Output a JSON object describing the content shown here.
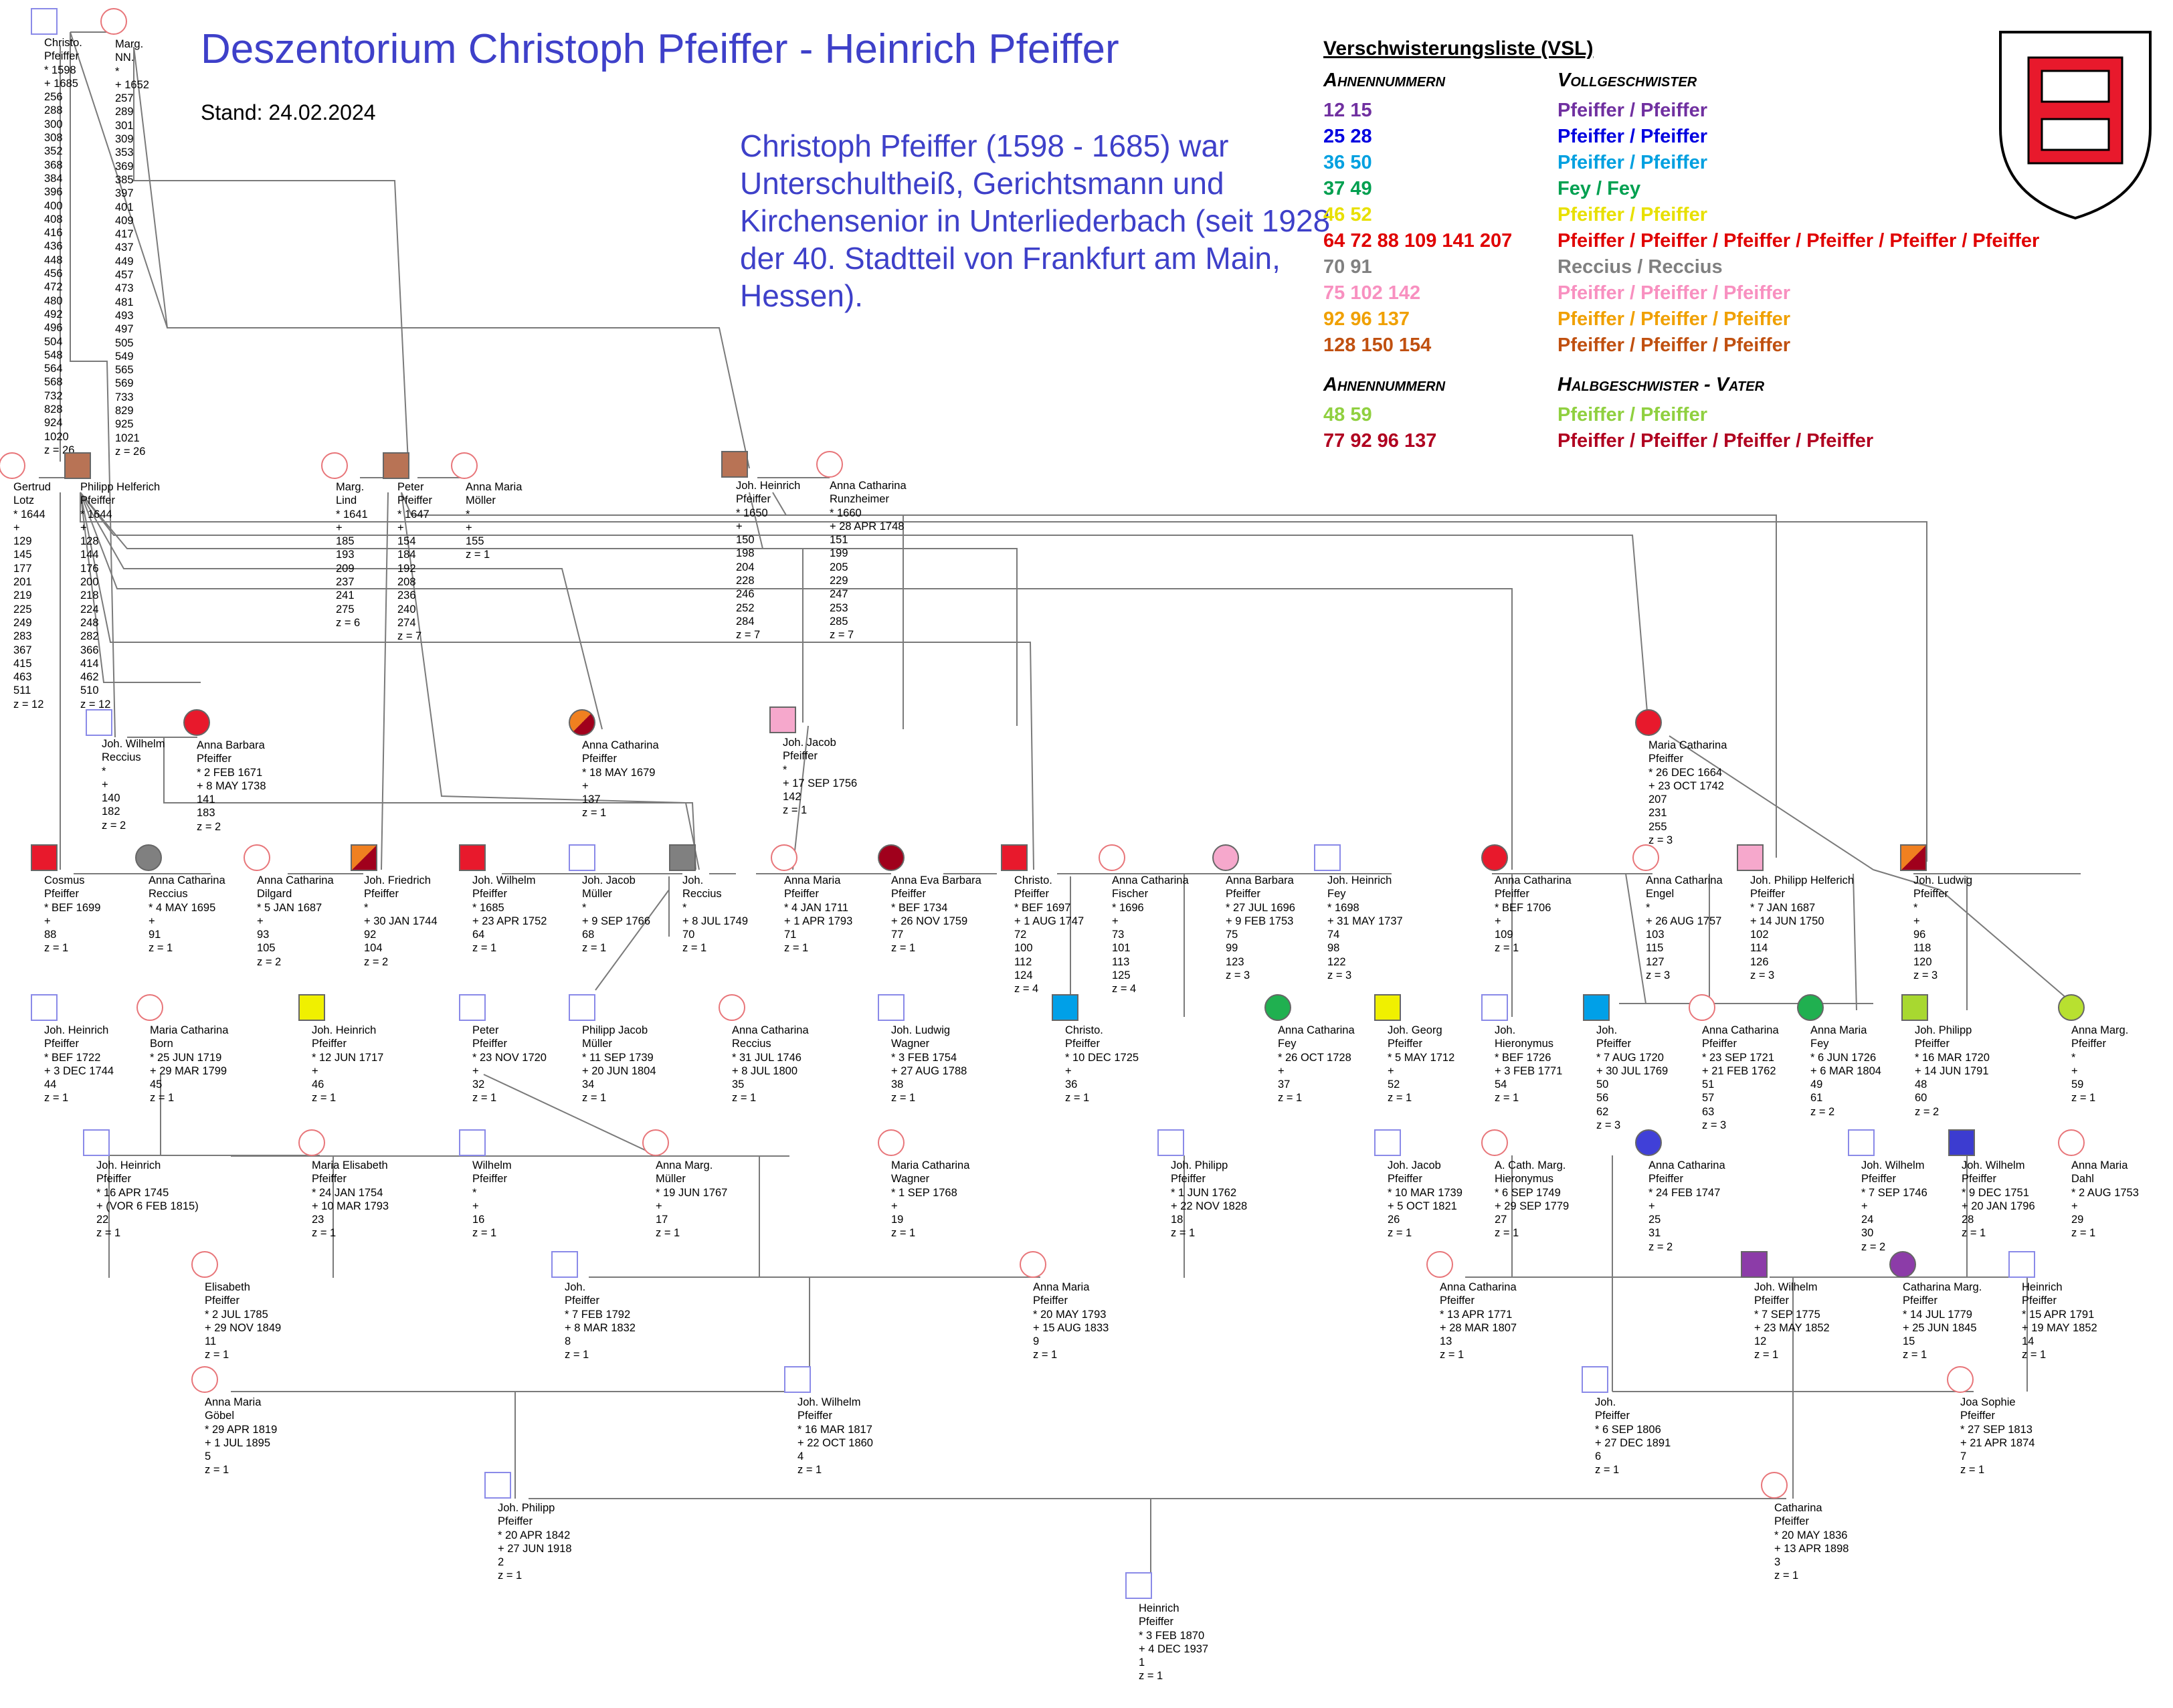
{
  "header": {
    "title": "Deszentorium Christoph Pfeiffer - Heinrich Pfeiffer",
    "stand": "Stand: 24.02.2024",
    "description": "Christoph Pfeiffer (1598 - 1685) war Unterschultheiß, Gerichtsmann und Kirchensenior in Unterliederbach (seit 1928 der 40. Stadtteil von Frankfurt am Main, Hessen)."
  },
  "legend": {
    "title": "Verschwisterungsliste (VSL)",
    "col1": "Ahnennummern",
    "col2": "Vollgeschwister",
    "rows": [
      {
        "k": "12 15",
        "v": "Pfeiffer / Pfeiffer",
        "color": "#7030a0"
      },
      {
        "k": "25 28",
        "v": "Pfeiffer / Pfeiffer",
        "color": "#0000e0"
      },
      {
        "k": "36 50",
        "v": "Pfeiffer / Pfeiffer",
        "color": "#00a0e0"
      },
      {
        "k": "37 49",
        "v": "Fey / Fey",
        "color": "#00a050"
      },
      {
        "k": "46 52",
        "v": "Pfeiffer / Pfeiffer",
        "color": "#e8e000"
      },
      {
        "k": "64 72 88 109 141 207",
        "v": "Pfeiffer / Pfeiffer / Pfeiffer / Pfeiffer / Pfeiffer / Pfeiffer",
        "color": "#e00000"
      },
      {
        "k": "70 91",
        "v": "Reccius / Reccius",
        "color": "#808080"
      },
      {
        "k": "75 102 142",
        "v": "Pfeiffer / Pfeiffer / Pfeiffer",
        "color": "#f890c0"
      },
      {
        "k": "92 96 137",
        "v": "Pfeiffer / Pfeiffer / Pfeiffer",
        "color": "#f0a000"
      },
      {
        "k": "128 150 154",
        "v": "Pfeiffer / Pfeiffer / Pfeiffer",
        "color": "#c05010"
      }
    ],
    "col1b": "Ahnennummern",
    "col2b": "Halbgeschwister - Vater",
    "rows2": [
      {
        "k": "48 59",
        "v": "Pfeiffer / Pfeiffer",
        "color": "#90d040"
      },
      {
        "k": "77 92 96 137",
        "v": "Pfeiffer / Pfeiffer / Pfeiffer / Pfeiffer",
        "color": "#b00020"
      }
    ]
  },
  "persons": [
    {
      "id": "p1",
      "shape": "sq",
      "fill": "empty",
      "text": "Christo.\nPfeiffer\n* 1598\n+ 1685\n256\n288\n300\n308\n352\n368\n384\n396\n400\n408\n416\n436\n448\n456\n472\n480\n492\n496\n504\n548\n564\n568\n732\n828\n924\n1020\nz = 26"
    },
    {
      "id": "p2",
      "shape": "ci",
      "fill": "empty",
      "text": "Marg.\nNN.\n*\n+ 1652\n257\n289\n301\n309\n353\n369\n385\n397\n401\n409\n417\n437\n449\n457\n473\n481\n493\n497\n505\n549\n565\n569\n733\n829\n925\n1021\nz = 26"
    },
    {
      "id": "p3",
      "shape": "ci",
      "fill": "empty",
      "text": "Gertrud\nLotz\n* 1644\n+\n129\n145\n177\n201\n219\n225\n249\n283\n367\n415\n463\n511\nz = 12"
    },
    {
      "id": "p4",
      "shape": "sq",
      "fill": "#b87355",
      "text": "Philipp Helferich\nPfeiffer\n* 1644\n+\n128\n144\n176\n200\n218\n224\n248\n282\n366\n414\n462\n510\nz = 12"
    },
    {
      "id": "p5",
      "shape": "ci",
      "fill": "empty",
      "text": "Marg.\nLind\n* 1641\n+\n185\n193\n209\n237\n241\n275\nz = 6"
    },
    {
      "id": "p6",
      "shape": "sq",
      "fill": "#b87355",
      "text": "Peter\nPfeiffer\n* 1647\n+\n154\n184\n192\n208\n236\n240\n274\nz = 7"
    },
    {
      "id": "p7",
      "shape": "ci",
      "fill": "empty",
      "text": "Anna Maria\nMöller\n*\n+\n155\nz = 1"
    },
    {
      "id": "p8",
      "shape": "sq",
      "fill": "#b87355",
      "text": "Joh. Heinrich\nPfeiffer\n* 1650\n+\n150\n198\n204\n228\n246\n252\n284\nz = 7"
    },
    {
      "id": "p9",
      "shape": "ci",
      "fill": "empty",
      "text": "Anna Catharina\nRunzheimer\n* 1660\n+ 28 APR 1748\n151\n199\n205\n229\n247\n253\n285\nz = 7"
    },
    {
      "id": "p10",
      "shape": "sq",
      "fill": "empty",
      "text": "Joh. Wilhelm\nReccius\n*\n+\n140\n182\nz = 2"
    },
    {
      "id": "p11",
      "shape": "ci",
      "fill": "#e8192c",
      "text": "Anna Barbara\nPfeiffer\n* 2 FEB 1671\n+ 8 MAY 1738\n141\n183\nz = 2"
    },
    {
      "id": "p12",
      "shape": "ci",
      "fill": "split:#f08020:#a0001c",
      "text": "Anna Catharina\nPfeiffer\n* 18 MAY 1679\n+\n137\nz = 1"
    },
    {
      "id": "p13",
      "shape": "sq",
      "fill": "#f6a8cc",
      "text": "Joh. Jacob\nPfeiffer\n*\n+ 17 SEP 1756\n142\nz = 1"
    },
    {
      "id": "p14",
      "shape": "ci",
      "fill": "#e8192c",
      "text": "Maria Catharina\nPfeiffer\n* 26 DEC 1664\n+ 23 OCT 1742\n207\n231\n255\nz = 3"
    },
    {
      "id": "p15",
      "shape": "sq",
      "fill": "#e8192c",
      "text": "Cosmus\nPfeiffer\n* BEF 1699\n+\n88\nz = 1"
    },
    {
      "id": "p16",
      "shape": "ci",
      "fill": "#808080",
      "text": "Anna Catharina\nReccius\n* 4 MAY 1695\n+\n91\nz = 1"
    },
    {
      "id": "p17",
      "shape": "ci",
      "fill": "empty",
      "text": "Anna Catharina\nDilgard\n* 5 JAN 1687\n+\n93\n105\nz = 2"
    },
    {
      "id": "p18",
      "shape": "sq",
      "fill": "split:#f08020:#a0001c",
      "text": "Joh. Friedrich\nPfeiffer\n*\n+ 30 JAN 1744\n92\n104\nz = 2"
    },
    {
      "id": "p19",
      "shape": "sq",
      "fill": "#e8192c",
      "text": "Joh. Wilhelm\nPfeiffer\n* 1685\n+ 23 APR 1752\n64\nz = 1"
    },
    {
      "id": "p20",
      "shape": "sq",
      "fill": "empty",
      "text": "Joh. Jacob\nMüller\n*\n+ 9 SEP 1766\n68\nz = 1"
    },
    {
      "id": "p21",
      "shape": "sq",
      "fill": "#808080",
      "text": "Joh.\nReccius\n*\n+ 8 JUL 1749\n70\nz = 1"
    },
    {
      "id": "p22",
      "shape": "ci",
      "fill": "empty",
      "text": "Anna Maria\nPfeiffer\n* 4 JAN 1711\n+ 1 APR 1793\n71\nz = 1"
    },
    {
      "id": "p23",
      "shape": "ci",
      "fill": "#a0001c",
      "text": "Anna Eva Barbara\nPfeiffer\n* BEF 1734\n+ 26 NOV 1759\n77\nz = 1"
    },
    {
      "id": "p24",
      "shape": "sq",
      "fill": "#e8192c",
      "text": "Christo.\nPfeiffer\n* BEF 1697\n+ 1 AUG 1747\n72\n100\n112\n124\nz = 4"
    },
    {
      "id": "p25",
      "shape": "ci",
      "fill": "empty",
      "text": "Anna Catharina\nFischer\n* 1696\n+\n73\n101\n113\n125\nz = 4"
    },
    {
      "id": "p26",
      "shape": "ci",
      "fill": "#f6a8cc",
      "text": "Anna Barbara\nPfeiffer\n* 27 JUL 1696\n+ 9 FEB 1753\n75\n99\n123\nz = 3"
    },
    {
      "id": "p27",
      "shape": "sq",
      "fill": "empty",
      "text": "Joh. Heinrich\nFey\n* 1698\n+ 31 MAY 1737\n74\n98\n122\nz = 3"
    },
    {
      "id": "p28",
      "shape": "ci",
      "fill": "#e8192c",
      "text": "Anna Catharina\nPfeiffer\n* BEF 1706\n+\n109\nz = 1"
    },
    {
      "id": "p29",
      "shape": "ci",
      "fill": "empty",
      "text": "Anna Catharina\nEngel\n*\n+ 26 AUG 1757\n103\n115\n127\nz = 3"
    },
    {
      "id": "p30",
      "shape": "sq",
      "fill": "#f6a8cc",
      "text": "Joh. Philipp Helferich\nPfeiffer\n* 7 JAN 1687\n+ 14 JUN 1750\n102\n114\n126\nz = 3"
    },
    {
      "id": "p31",
      "shape": "sq",
      "fill": "split:#f08020:#a0001c",
      "text": "Joh. Ludwig\nPfeiffer\n*\n+\n96\n118\n120\nz = 3"
    },
    {
      "id": "p32",
      "shape": "sq",
      "fill": "empty",
      "text": "Joh. Heinrich\nPfeiffer\n* BEF 1722\n+ 3 DEC 1744\n44\nz = 1"
    },
    {
      "id": "p33",
      "shape": "ci",
      "fill": "empty",
      "text": "Maria Catharina\nBorn\n* 25 JUN 1719\n+ 29 MAR 1799\n45\nz = 1"
    },
    {
      "id": "p34",
      "shape": "sq",
      "fill": "#f0f000",
      "text": "Joh. Heinrich\nPfeiffer\n* 12 JUN 1717\n+\n46\nz = 1"
    },
    {
      "id": "p35",
      "shape": "sq",
      "fill": "empty",
      "text": "Peter\nPfeiffer\n* 23 NOV 1720\n+\n32\nz = 1"
    },
    {
      "id": "p36",
      "shape": "sq",
      "fill": "empty",
      "text": "Philipp Jacob\nMüller\n* 11 SEP 1739\n+ 20 JUN 1804\n34\nz = 1"
    },
    {
      "id": "p37",
      "shape": "ci",
      "fill": "empty",
      "text": "Anna Catharina\nReccius\n* 31 JUL 1746\n+ 8 JUL 1800\n35\nz = 1"
    },
    {
      "id": "p38",
      "shape": "sq",
      "fill": "empty",
      "text": "Joh. Ludwig\nWagner\n* 3 FEB 1754\n+ 27 AUG 1788\n38\nz = 1"
    },
    {
      "id": "p39",
      "shape": "sq",
      "fill": "#00a0e8",
      "text": "Christo.\nPfeiffer\n* 10 DEC 1725\n+\n36\nz = 1"
    },
    {
      "id": "p40",
      "shape": "ci",
      "fill": "#20b050",
      "text": "Anna Catharina\nFey\n* 26 OCT 1728\n+\n37\nz = 1"
    },
    {
      "id": "p41",
      "shape": "sq",
      "fill": "#f0f000",
      "text": "Joh. Georg\nPfeiffer\n* 5 MAY 1712\n+\n52\nz = 1"
    },
    {
      "id": "p42",
      "shape": "sq",
      "fill": "empty",
      "text": "Joh.\nHieronymus\n* BEF 1726\n+ 3 FEB 1771\n54\nz = 1"
    },
    {
      "id": "p43",
      "shape": "sq",
      "fill": "#00a0e8",
      "text": "Joh.\nPfeiffer\n* 7 AUG 1720\n+ 30 JUL 1769\n50\n56\n62\nz = 3"
    },
    {
      "id": "p44",
      "shape": "ci",
      "fill": "empty",
      "text": "Anna Catharina\nPfeiffer\n* 23 SEP 1721\n+ 21 FEB 1762\n51\n57\n63\nz = 3"
    },
    {
      "id": "p45",
      "shape": "ci",
      "fill": "#20b050",
      "text": "Anna Maria\nFey\n* 6 JUN 1726\n+ 6 MAR 1804\n49\n61\nz = 2"
    },
    {
      "id": "p46",
      "shape": "sq",
      "fill": "#a8d830",
      "text": "Joh. Philipp\nPfeiffer\n* 16 MAR 1720\n+ 14 JUN 1791\n48\n60\nz = 2"
    },
    {
      "id": "p47",
      "shape": "ci",
      "fill": "#b8e030",
      "text": "Anna Marg.\nPfeiffer\n*\n+\n59\nz = 1"
    },
    {
      "id": "p48",
      "shape": "sq",
      "fill": "empty",
      "text": "Joh. Heinrich\nPfeiffer\n* 16 APR 1745\n+ (VOR 6 FEB 1815)\n22\nz = 1"
    },
    {
      "id": "p49",
      "shape": "ci",
      "fill": "empty",
      "text": "Maria Elisabeth\nPfeiffer\n* 24 JAN 1754\n+ 10 MAR 1793\n23\nz = 1"
    },
    {
      "id": "p50",
      "shape": "sq",
      "fill": "empty",
      "text": "Wilhelm\nPfeiffer\n*\n+\n16\nz = 1"
    },
    {
      "id": "p51",
      "shape": "ci",
      "fill": "empty",
      "text": "Anna Marg.\nMüller\n* 19 JUN 1767\n+\n17\nz = 1"
    },
    {
      "id": "p52",
      "shape": "ci",
      "fill": "empty",
      "text": "Maria Catharina\nWagner\n* 1 SEP 1768\n+\n19\nz = 1"
    },
    {
      "id": "p53",
      "shape": "sq",
      "fill": "empty",
      "text": "Joh. Philipp\nPfeiffer\n* 1 JUN 1762\n+ 22 NOV 1828\n18\nz = 1"
    },
    {
      "id": "p54",
      "shape": "sq",
      "fill": "empty",
      "text": "Joh. Jacob\nPfeiffer\n* 10 MAR 1739\n+ 5 OCT 1821\n26\nz = 1"
    },
    {
      "id": "p55",
      "shape": "ci",
      "fill": "empty",
      "text": "A. Cath. Marg.\nHieronymus\n* 6 SEP 1749\n+ 29 SEP 1779\n27\nz = 1"
    },
    {
      "id": "p56",
      "shape": "ci",
      "fill": "#4040d8",
      "text": "Anna Catharina\nPfeiffer\n* 24 FEB 1747\n+\n25\n31\nz = 2"
    },
    {
      "id": "p57",
      "shape": "sq",
      "fill": "empty",
      "text": "Joh. Wilhelm\nPfeiffer\n* 7 SEP 1746\n+\n24\n30\nz = 2"
    },
    {
      "id": "p58",
      "shape": "sq",
      "fill": "#3c3cd0",
      "text": "Joh. Wilhelm\nPfeiffer\n* 9 DEC 1751\n+ 20 JAN 1796\n28\nz = 1"
    },
    {
      "id": "p59",
      "shape": "ci",
      "fill": "empty",
      "text": "Anna Maria\nDahl\n* 2 AUG 1753\n+\n29\nz = 1"
    },
    {
      "id": "p60",
      "shape": "ci",
      "fill": "empty",
      "text": "Elisabeth\nPfeiffer\n* 2 JUL 1785\n+ 29 NOV 1849\n11\nz = 1"
    },
    {
      "id": "p61",
      "shape": "sq",
      "fill": "empty",
      "text": "Joh.\nPfeiffer\n* 7 FEB 1792\n+ 8 MAR 1832\n8\nz = 1"
    },
    {
      "id": "p62",
      "shape": "ci",
      "fill": "empty",
      "text": "Anna Maria\nPfeiffer\n* 20 MAY 1793\n+ 15 AUG 1833\n9\nz = 1"
    },
    {
      "id": "p63",
      "shape": "ci",
      "fill": "empty",
      "text": "Anna Catharina\nPfeiffer\n* 13 APR 1771\n+ 28 MAR 1807\n13\nz = 1"
    },
    {
      "id": "p64",
      "shape": "sq",
      "fill": "#8c3ca8",
      "text": "Joh. Wilhelm\nPfeiffer\n* 7 SEP 1775\n+ 23 MAY 1852\n12\nz = 1"
    },
    {
      "id": "p65",
      "shape": "ci",
      "fill": "#8c3ca8",
      "text": "Catharina Marg.\nPfeiffer\n* 14 JUL 1779\n+ 25 JUN 1845\n15\nz = 1"
    },
    {
      "id": "p66",
      "shape": "sq",
      "fill": "empty",
      "text": "Heinrich\nPfeiffer\n* 15 APR 1791\n+ 19 MAY 1852\n14\nz = 1"
    },
    {
      "id": "p67",
      "shape": "ci",
      "fill": "empty",
      "text": "Anna Maria\nGöbel\n* 29 APR 1819\n+ 1 JUL 1895\n5\nz = 1"
    },
    {
      "id": "p68",
      "shape": "sq",
      "fill": "empty",
      "text": "Joh. Wilhelm\nPfeiffer\n* 16 MAR 1817\n+ 22 OCT 1860\n4\nz = 1"
    },
    {
      "id": "p69",
      "shape": "sq",
      "fill": "empty",
      "text": "Joh.\nPfeiffer\n* 6 SEP 1806\n+ 27 DEC 1891\n6\nz = 1"
    },
    {
      "id": "p70",
      "shape": "ci",
      "fill": "empty",
      "text": "Joa Sophie\nPfeiffer\n* 27 SEP 1813\n+ 21 APR 1874\n7\nz = 1"
    },
    {
      "id": "p71",
      "shape": "sq",
      "fill": "empty",
      "text": "Joh. Philipp\nPfeiffer\n* 20 APR 1842\n+ 27 JUN 1918\n2\nz = 1"
    },
    {
      "id": "p72",
      "shape": "ci",
      "fill": "empty",
      "text": "Catharina\nPfeiffer\n* 20 MAY 1836\n+ 13 APR 1898\n3\nz = 1"
    },
    {
      "id": "p73",
      "shape": "sq",
      "fill": "empty",
      "text": "Heinrich\nPfeiffer\n* 3 FEB 1870\n+ 4 DEC 1937\n1\nz = 1"
    }
  ]
}
